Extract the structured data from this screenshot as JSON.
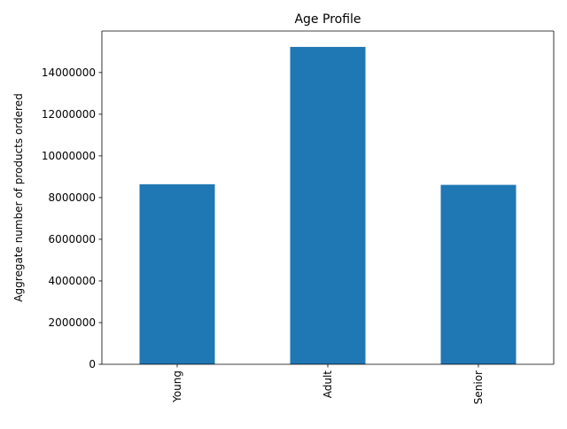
{
  "chart_data": {
    "type": "bar",
    "title": "Age Profile",
    "xlabel": "",
    "ylabel": "Aggregate number of products ordered",
    "categories": [
      "Young",
      "Adult",
      "Senior"
    ],
    "values": [
      8640000,
      15230000,
      8610000
    ],
    "ylim": [
      0,
      15992000
    ],
    "yticks": [
      0,
      2000000,
      4000000,
      6000000,
      8000000,
      10000000,
      12000000,
      14000000
    ],
    "ytick_labels": [
      "0",
      "2000000",
      "4000000",
      "6000000",
      "8000000",
      "10000000",
      "12000000",
      "14000000"
    ],
    "bar_color": "#1f77b4",
    "grid": false,
    "legend": "none",
    "xtick_rotation": "vertical"
  }
}
